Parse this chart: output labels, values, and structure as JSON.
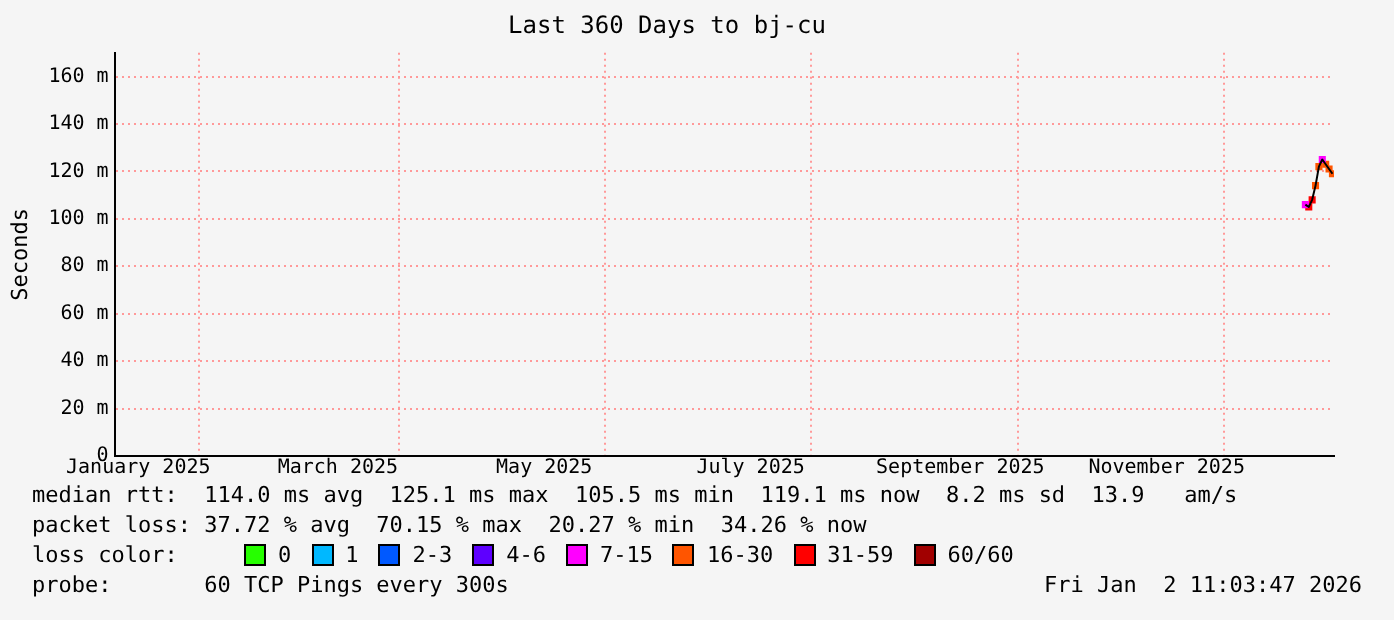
{
  "chart_data": {
    "type": "line",
    "title": "Last 360 Days to bj-cu",
    "ylabel": "Seconds",
    "legend_title": "loss color:",
    "legend": "bottom",
    "grid": true,
    "marker": "square",
    "x": [
      "2025-12-25",
      "2025-12-26",
      "2025-12-27",
      "2025-12-28",
      "2025-12-29",
      "2025-12-30",
      "2025-12-31",
      "2026-01-01",
      "2026-01-02"
    ],
    "xlim": [
      "2025-01-07",
      "2026-01-02T11:03"
    ],
    "xticks": [
      {
        "value": "2025-01-14",
        "label": "January 2025"
      },
      {
        "value": "2025-02-01",
        "label": null
      },
      {
        "value": "2025-03-14",
        "label": "March 2025"
      },
      {
        "value": "2025-04-01",
        "label": null
      },
      {
        "value": "2025-05-14",
        "label": "May 2025"
      },
      {
        "value": "2025-06-01",
        "label": null
      },
      {
        "value": "2025-07-14",
        "label": "July 2025"
      },
      {
        "value": "2025-08-01",
        "label": null
      },
      {
        "value": "2025-09-14",
        "label": "September 2025"
      },
      {
        "value": "2025-10-01",
        "label": null
      },
      {
        "value": "2025-11-14",
        "label": "November 2025"
      },
      {
        "value": "2025-12-01",
        "label": null
      }
    ],
    "ylim": [
      0,
      170
    ],
    "yticks": [
      0,
      {
        "value": 20,
        "label": "20 m"
      },
      {
        "value": 40,
        "label": "40 m"
      },
      {
        "value": 60,
        "label": "60 m"
      },
      {
        "value": 80,
        "label": "80 m"
      },
      {
        "value": 100,
        "label": "100 m"
      },
      {
        "value": 120,
        "label": "120 m"
      },
      {
        "value": 140,
        "label": "140 m"
      },
      {
        "value": 160,
        "label": "160 m"
      }
    ],
    "series": [
      {
        "type": "line",
        "color": "#000000",
        "marker": "none",
        "values": [
          106,
          105,
          108,
          114,
          122,
          125,
          123,
          121,
          119
        ]
      },
      {
        "type": "scatter",
        "name": "0",
        "color": "#26ff00",
        "values": [
          null,
          null,
          null,
          null,
          null,
          null,
          null,
          null,
          null
        ]
      },
      {
        "type": "scatter",
        "name": "1",
        "color": "#00b8ff",
        "values": [
          null,
          null,
          null,
          null,
          null,
          null,
          null,
          null,
          null
        ]
      },
      {
        "type": "scatter",
        "name": "2-3",
        "color": "#0059ff",
        "values": [
          null,
          null,
          null,
          null,
          null,
          null,
          null,
          null,
          null
        ]
      },
      {
        "type": "scatter",
        "name": "4-6",
        "color": "#5e00ff",
        "values": [
          null,
          null,
          null,
          null,
          null,
          null,
          null,
          null,
          null
        ]
      },
      {
        "type": "scatter",
        "name": "7-15",
        "color": "#ff00ff",
        "values": [
          106,
          null,
          null,
          null,
          null,
          125,
          null,
          null,
          null
        ]
      },
      {
        "type": "scatter",
        "name": "16-30",
        "color": "#ff5500",
        "values": [
          null,
          null,
          null,
          114,
          122,
          null,
          123,
          121,
          119
        ]
      },
      {
        "type": "scatter",
        "name": "31-59",
        "color": "#ff0000",
        "values": [
          null,
          105,
          108,
          null,
          null,
          null,
          null,
          null,
          null
        ]
      },
      {
        "type": "scatter",
        "name": "60/60",
        "color": "#a10000",
        "values": [
          null,
          null,
          null,
          null,
          null,
          null,
          null,
          null,
          null
        ]
      }
    ],
    "annotations": [
      "median rtt:  114.0 ms avg  125.1 ms max  105.5 ms min  119.1 ms now  8.2 ms sd  13.9   am/s",
      "packet loss: 37.72 % avg  70.15 % max  20.27 % min  34.26 % now",
      "probe:       60 TCP Pings every 300s",
      "Fri Jan  2 11:03:47 2026"
    ]
  }
}
